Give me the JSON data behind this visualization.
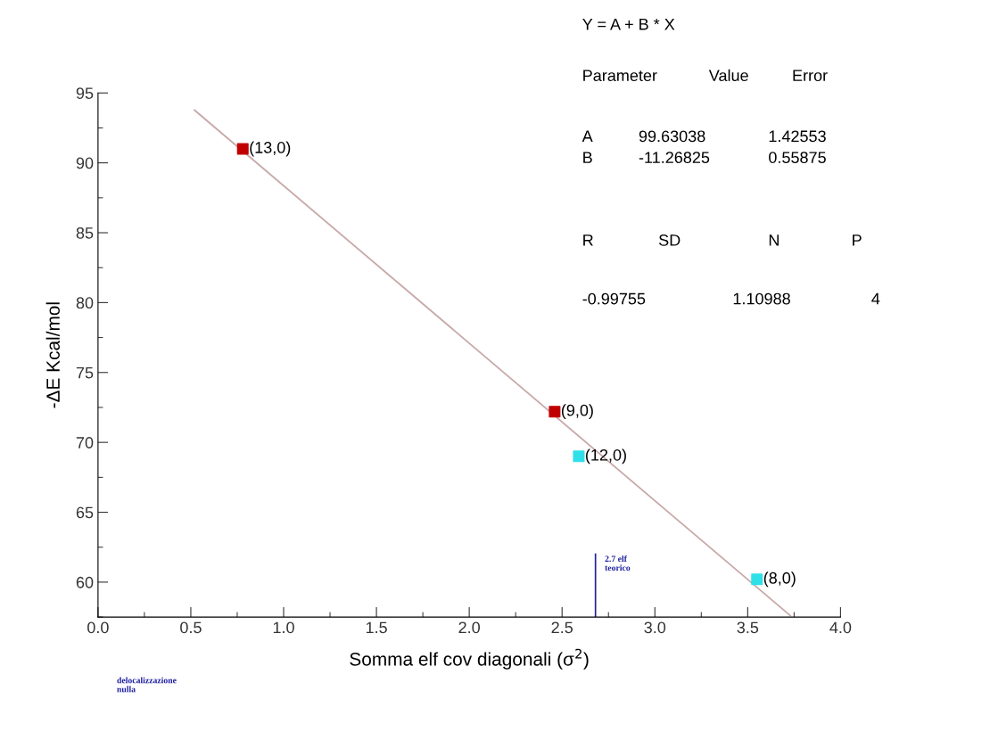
{
  "chart_data": {
    "type": "scatter",
    "xlabel": "Somma elf cov diagonali (σ$^{2}$)",
    "ylabel": "-ΔE Kcal/mol",
    "x": [
      0.78,
      2.46,
      2.59,
      3.55
    ],
    "series": [
      {
        "values": [
          91.0,
          72.2,
          69.0,
          60.2
        ],
        "colors": [
          "#c00000",
          "#c00000",
          "#30e0e8",
          "#30e0e8"
        ],
        "marker": "square"
      },
      {
        "type": "line",
        "x": [
          0.52,
          3.73
        ],
        "values": [
          93.77,
          57.6
        ],
        "color": "#c8a8a8",
        "marker": "none",
        "line_style": "solid"
      }
    ],
    "xlim": [
      0,
      4
    ],
    "ylim": [
      57.5,
      95
    ],
    "xticks": [
      {
        "value": 0,
        "label": "0.0"
      },
      {
        "value": 0.5,
        "label": "0.5"
      },
      {
        "value": 1,
        "label": "1.0"
      },
      {
        "value": 1.5,
        "label": "1.5"
      },
      {
        "value": 2,
        "label": "2.0"
      },
      {
        "value": 2.5,
        "label": "2.5"
      },
      {
        "value": 3,
        "label": "3.0"
      },
      {
        "value": 3.5,
        "label": "3.5"
      },
      {
        "value": 4,
        "label": "4.0"
      }
    ],
    "yticks": [
      60,
      65,
      70,
      75,
      80,
      85,
      90,
      95
    ],
    "grid": false,
    "legend": false,
    "ref_lines": [
      {
        "axis": "x",
        "value": 2.68,
        "label": "2.7 elf\nteorico",
        "color": "#2020a0",
        "line_style": "solid"
      }
    ],
    "annotations": [
      {
        "text": "(13,0)",
        "x": 0.78,
        "y": 91.0
      },
      {
        "text": "(9,0)",
        "x": 2.46,
        "y": 72.2
      },
      {
        "text": "(12,0)",
        "x": 2.59,
        "y": 69.0
      },
      {
        "text": "(8,0)",
        "x": 3.55,
        "y": 60.2
      },
      "delocalizzazione\nnulla",
      "Y = A + B * X",
      "Parameter\tValue\tError",
      "A\t99.63038\t1.42553",
      "B\t-11.26825\t0.55875",
      "R\tSD\tN\tP",
      "-0.99755\t1.10988\t4"
    ]
  }
}
